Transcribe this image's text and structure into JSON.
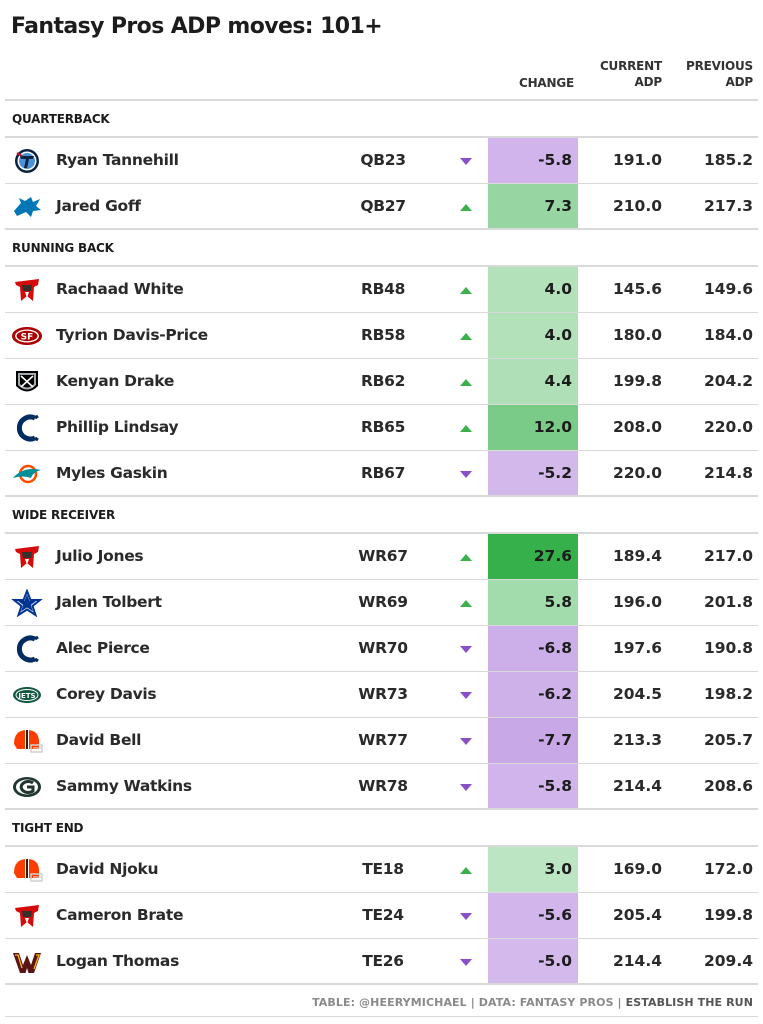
{
  "title": "Fantasy Pros ADP moves: 101+",
  "headers": {
    "change": "CHANGE",
    "current_line1": "CURRENT",
    "current_line2": "ADP",
    "previous_line1": "PREVIOUS",
    "previous_line2": "ADP"
  },
  "colors": {
    "up_arrow": "#3cb04a",
    "down_arrow": "#8a4fc6",
    "max_green": "#35b04b",
    "max_purple": "#c9a8e8"
  },
  "chart_data": {
    "type": "table",
    "columns": [
      "Team",
      "Player",
      "Position",
      "Direction",
      "Change",
      "Current ADP",
      "Previous ADP"
    ],
    "sections": [
      {
        "label": "QUARTERBACK",
        "rows": [
          {
            "team_icon": "titans-logo-icon",
            "player": "Ryan Tannehill",
            "pos": "QB23",
            "dir": "down",
            "change": "-5.8",
            "current": "191.0",
            "previous": "185.2"
          },
          {
            "team_icon": "lions-logo-icon",
            "player": "Jared Goff",
            "pos": "QB27",
            "dir": "up",
            "change": "7.3",
            "current": "210.0",
            "previous": "217.3"
          }
        ]
      },
      {
        "label": "RUNNING BACK",
        "rows": [
          {
            "team_icon": "buccaneers-logo-icon",
            "player": "Rachaad White",
            "pos": "RB48",
            "dir": "up",
            "change": "4.0",
            "current": "145.6",
            "previous": "149.6"
          },
          {
            "team_icon": "49ers-logo-icon",
            "player": "Tyrion Davis-Price",
            "pos": "RB58",
            "dir": "up",
            "change": "4.0",
            "current": "180.0",
            "previous": "184.0"
          },
          {
            "team_icon": "raiders-logo-icon",
            "player": "Kenyan Drake",
            "pos": "RB62",
            "dir": "up",
            "change": "4.4",
            "current": "199.8",
            "previous": "204.2"
          },
          {
            "team_icon": "colts-logo-icon",
            "player": "Phillip Lindsay",
            "pos": "RB65",
            "dir": "up",
            "change": "12.0",
            "current": "208.0",
            "previous": "220.0"
          },
          {
            "team_icon": "dolphins-logo-icon",
            "player": "Myles Gaskin",
            "pos": "RB67",
            "dir": "down",
            "change": "-5.2",
            "current": "220.0",
            "previous": "214.8"
          }
        ]
      },
      {
        "label": "WIDE RECEIVER",
        "rows": [
          {
            "team_icon": "buccaneers-logo-icon",
            "player": "Julio Jones",
            "pos": "WR67",
            "dir": "up",
            "change": "27.6",
            "current": "189.4",
            "previous": "217.0"
          },
          {
            "team_icon": "cowboys-logo-icon",
            "player": "Jalen Tolbert",
            "pos": "WR69",
            "dir": "up",
            "change": "5.8",
            "current": "196.0",
            "previous": "201.8"
          },
          {
            "team_icon": "colts-logo-icon",
            "player": "Alec Pierce",
            "pos": "WR70",
            "dir": "down",
            "change": "-6.8",
            "current": "197.6",
            "previous": "190.8"
          },
          {
            "team_icon": "jets-logo-icon",
            "player": "Corey Davis",
            "pos": "WR73",
            "dir": "down",
            "change": "-6.2",
            "current": "204.5",
            "previous": "198.2"
          },
          {
            "team_icon": "browns-logo-icon",
            "player": "David Bell",
            "pos": "WR77",
            "dir": "down",
            "change": "-7.7",
            "current": "213.3",
            "previous": "205.7"
          },
          {
            "team_icon": "packers-logo-icon",
            "player": "Sammy Watkins",
            "pos": "WR78",
            "dir": "down",
            "change": "-5.8",
            "current": "214.4",
            "previous": "208.6"
          }
        ]
      },
      {
        "label": "TIGHT END",
        "rows": [
          {
            "team_icon": "browns-logo-icon",
            "player": "David Njoku",
            "pos": "TE18",
            "dir": "up",
            "change": "3.0",
            "current": "169.0",
            "previous": "172.0"
          },
          {
            "team_icon": "buccaneers-logo-icon",
            "player": "Cameron Brate",
            "pos": "TE24",
            "dir": "down",
            "change": "-5.6",
            "current": "205.4",
            "previous": "199.8"
          },
          {
            "team_icon": "commanders-logo-icon",
            "player": "Logan Thomas",
            "pos": "TE26",
            "dir": "down",
            "change": "-5.0",
            "current": "214.4",
            "previous": "209.4"
          }
        ]
      }
    ]
  },
  "footer": {
    "credit": "TABLE: @HEERYMICHAEL | DATA: FANTASY PROS | ",
    "brand": "ESTABLISH THE RUN"
  }
}
